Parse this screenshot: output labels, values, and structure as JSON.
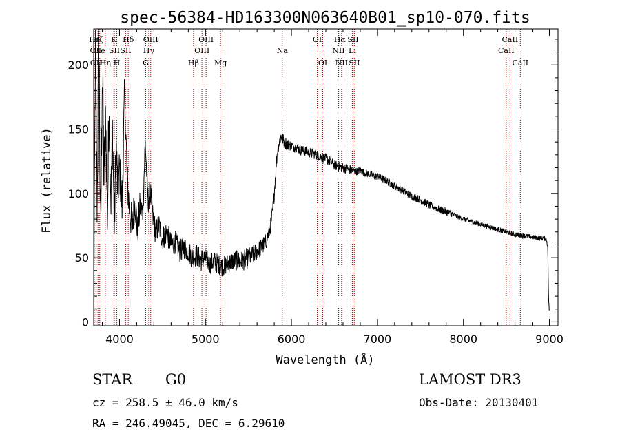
{
  "chart_data": {
    "type": "line",
    "title": "spec-56384-HD163300N063640B01_sp10-070.fits",
    "xlabel": "Wavelength (Å)",
    "ylabel": "Flux (relative)",
    "xlim": [
      3700,
      9100
    ],
    "ylim": [
      -3,
      228
    ],
    "xticks": [
      4000,
      5000,
      6000,
      7000,
      8000,
      9000
    ],
    "xtick_labels": [
      "4000",
      "5000",
      "6000",
      "7000",
      "8000",
      "9000"
    ],
    "yticks": [
      0,
      50,
      100,
      150,
      200
    ],
    "ytick_labels": [
      "0",
      "50",
      "100",
      "150",
      "200"
    ],
    "grid": false,
    "spectrum": {
      "name": "flux",
      "x": [
        3700,
        3720,
        3740,
        3760,
        3780,
        3800,
        3820,
        3840,
        3860,
        3880,
        3900,
        3920,
        3940,
        3960,
        3980,
        4000,
        4030,
        4060,
        4090,
        4120,
        4150,
        4180,
        4210,
        4240,
        4270,
        4300,
        4330,
        4360,
        4390,
        4420,
        4460,
        4500,
        4550,
        4600,
        4650,
        4700,
        4750,
        4800,
        4850,
        4900,
        4950,
        5000,
        5050,
        5100,
        5150,
        5200,
        5250,
        5300,
        5350,
        5400,
        5450,
        5500,
        5550,
        5600,
        5650,
        5700,
        5750,
        5780,
        5800,
        5820,
        5840,
        5860,
        5880,
        5900,
        5920,
        5950,
        6000,
        6050,
        6100,
        6150,
        6200,
        6250,
        6300,
        6350,
        6400,
        6450,
        6500,
        6550,
        6600,
        6650,
        6700,
        6750,
        6800,
        6850,
        6900,
        6950,
        7000,
        7100,
        7200,
        7300,
        7400,
        7500,
        7600,
        7700,
        7800,
        7900,
        8000,
        8100,
        8200,
        8300,
        8400,
        8500,
        8600,
        8700,
        8800,
        8900,
        8960,
        8980,
        8990,
        9000
      ],
      "y": [
        0,
        210,
        90,
        230,
        60,
        200,
        110,
        160,
        80,
        175,
        95,
        150,
        70,
        140,
        100,
        120,
        90,
        180,
        110,
        85,
        75,
        95,
        70,
        90,
        85,
        140,
        95,
        100,
        80,
        70,
        75,
        65,
        70,
        60,
        62,
        55,
        58,
        55,
        50,
        52,
        48,
        50,
        45,
        47,
        45,
        43,
        45,
        47,
        48,
        47,
        48,
        50,
        52,
        55,
        58,
        62,
        72,
        85,
        100,
        120,
        135,
        140,
        145,
        142,
        140,
        138,
        137,
        136,
        134,
        133,
        132,
        131,
        130,
        128,
        127,
        125,
        122,
        121,
        120,
        119,
        118,
        117,
        118,
        116,
        115,
        114,
        113,
        110,
        106,
        102,
        98,
        95,
        91,
        88,
        86,
        83,
        80,
        78,
        76,
        74,
        72,
        70,
        68,
        67,
        66,
        65,
        65,
        60,
        20,
        5
      ],
      "noise_amplitude": [
        3,
        40,
        30,
        40,
        30,
        35,
        30,
        30,
        25,
        30,
        25,
        25,
        22,
        22,
        20,
        18,
        18,
        18,
        16,
        16,
        15,
        14,
        14,
        13,
        12,
        12,
        12,
        11,
        11,
        10,
        10,
        10,
        10,
        9,
        9,
        9,
        9,
        9,
        9,
        9,
        9,
        8,
        8,
        8,
        8,
        8,
        8,
        8,
        8,
        8,
        8,
        8,
        8,
        7,
        7,
        7,
        6,
        6,
        6,
        6,
        5,
        5,
        5,
        5,
        5,
        5,
        4,
        4,
        4,
        4,
        4,
        4,
        4,
        4,
        4,
        4,
        4,
        4,
        4,
        4,
        4,
        3,
        3,
        3,
        3,
        3,
        3,
        3,
        3,
        3,
        3,
        3,
        3,
        3,
        3,
        2,
        2,
        2,
        2,
        2,
        2,
        2,
        2,
        2,
        2,
        2,
        2,
        2,
        2,
        1
      ]
    },
    "lines": [
      {
        "label": "Hε",
        "x": 3707,
        "row": 0
      },
      {
        "label": "OII",
        "x": 3727,
        "row": 1
      },
      {
        "label": "OII",
        "x": 3729,
        "row": 2
      },
      {
        "label": "Hζ",
        "x": 3750,
        "row": 0
      },
      {
        "label": "He",
        "x": 3770,
        "row": 1
      },
      {
        "label": "Hη",
        "x": 3835,
        "row": 2
      },
      {
        "label": "K",
        "x": 3934,
        "row": 0
      },
      {
        "label": "SII",
        "x": 3940,
        "row": 1
      },
      {
        "label": "H",
        "x": 3969,
        "row": 2
      },
      {
        "label": "Hδ",
        "x": 4102,
        "row": 0
      },
      {
        "label": "SII",
        "x": 4072,
        "row": 1
      },
      {
        "label": "OIII",
        "x": 4363,
        "row": 0
      },
      {
        "label": "Hγ",
        "x": 4341,
        "row": 1
      },
      {
        "label": "G",
        "x": 4305,
        "row": 2
      },
      {
        "label": "Hβ",
        "x": 4861,
        "row": 2
      },
      {
        "label": "OIII",
        "x": 4959,
        "row": 1
      },
      {
        "label": "OIII",
        "x": 5007,
        "row": 0
      },
      {
        "label": "Mg",
        "x": 5175,
        "row": 2
      },
      {
        "label": "Na",
        "x": 5893,
        "row": 1
      },
      {
        "label": "OI",
        "x": 6300,
        "row": 0
      },
      {
        "label": "OI",
        "x": 6364,
        "row": 2
      },
      {
        "label": "NII",
        "x": 6548,
        "row": 1
      },
      {
        "label": "Hα",
        "x": 6563,
        "row": 0
      },
      {
        "label": "NII",
        "x": 6583,
        "row": 2
      },
      {
        "label": "Li",
        "x": 6708,
        "row": 1
      },
      {
        "label": "SII",
        "x": 6716,
        "row": 0
      },
      {
        "label": "SII",
        "x": 6731,
        "row": 2
      },
      {
        "label": "CaII",
        "x": 8498,
        "row": 1
      },
      {
        "label": "CaII",
        "x": 8542,
        "row": 0
      },
      {
        "label": "CaII",
        "x": 8662,
        "row": 2
      }
    ]
  },
  "info": {
    "class": "STAR",
    "subclass": "G0",
    "survey": "LAMOST DR3",
    "cz": "cz = 258.5 ± 46.0 km/s",
    "obs_date": "Obs-Date: 20130401",
    "coords": "RA = 246.49045, DEC =   6.29610"
  }
}
